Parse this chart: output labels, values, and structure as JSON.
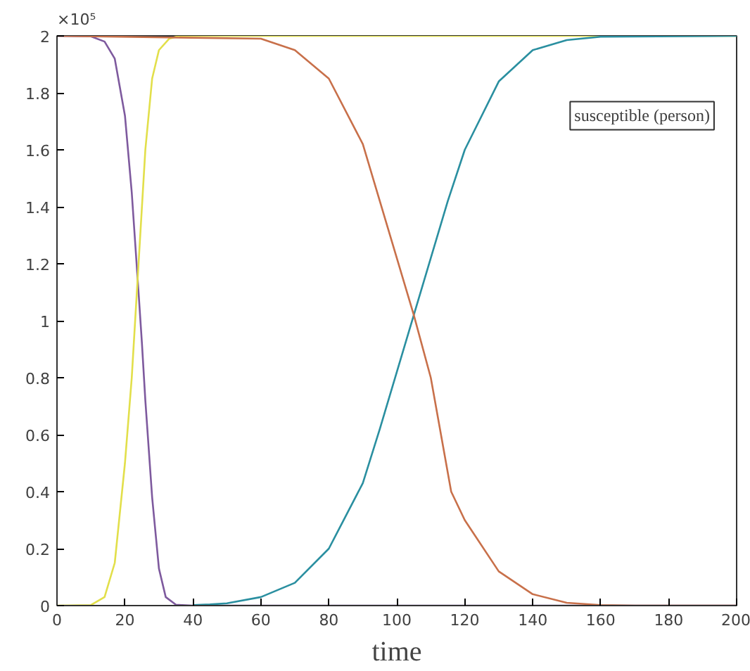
{
  "chart_data": {
    "type": "line",
    "xlabel": "time",
    "xlim": [
      0,
      200
    ],
    "ylim": [
      0,
      2
    ],
    "xticks": [
      0,
      20,
      40,
      60,
      80,
      100,
      120,
      140,
      160,
      180,
      200
    ],
    "yticks": [
      0,
      0.2,
      0.4,
      0.6,
      0.8,
      1,
      1.2,
      1.4,
      1.6,
      1.8,
      2
    ],
    "grid": false,
    "annotations": [
      "×10⁵",
      "susceptible (person)"
    ],
    "series": [
      {
        "color": "#7e5a9e",
        "x": [
          0,
          10,
          14,
          17,
          20,
          22,
          24,
          25,
          26,
          28,
          30,
          32,
          35,
          40,
          200
        ],
        "values": [
          2,
          1.998,
          1.98,
          1.92,
          1.72,
          1.45,
          1.1,
          0.92,
          0.72,
          0.38,
          0.13,
          0.03,
          0.003,
          0,
          0
        ]
      },
      {
        "color": "#e2df4a",
        "x": [
          0,
          10,
          14,
          17,
          20,
          22,
          24,
          26,
          28,
          30,
          33,
          36,
          200
        ],
        "values": [
          0,
          0.002,
          0.03,
          0.15,
          0.5,
          0.8,
          1.2,
          1.6,
          1.85,
          1.95,
          1.99,
          2,
          2
        ]
      },
      {
        "color": "#2a8fa0",
        "x": [
          40,
          45,
          50,
          60,
          70,
          80,
          90,
          95,
          100,
          105,
          110,
          115,
          120,
          130,
          140,
          150,
          160,
          200
        ],
        "values": [
          0.002,
          0.004,
          0.008,
          0.03,
          0.08,
          0.2,
          0.43,
          0.62,
          0.82,
          1.02,
          1.22,
          1.42,
          1.6,
          1.84,
          1.95,
          1.985,
          1.997,
          2
        ]
      },
      {
        "color": "#c8704a",
        "x": [
          0,
          60,
          70,
          80,
          90,
          100,
          105,
          110,
          116,
          120,
          130,
          140,
          150,
          160,
          170,
          200
        ],
        "values": [
          2,
          1.99,
          1.95,
          1.85,
          1.62,
          1.22,
          1.02,
          0.8,
          0.4,
          0.3,
          0.12,
          0.04,
          0.01,
          0.002,
          0,
          0
        ]
      }
    ]
  }
}
